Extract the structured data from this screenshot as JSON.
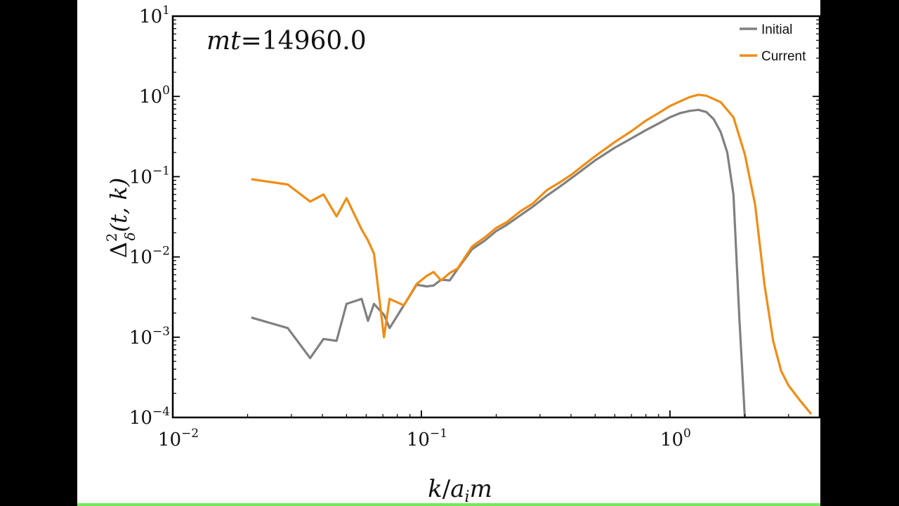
{
  "chart_data": {
    "type": "line",
    "title": "",
    "annotation": "mt=14960.0",
    "annotation_parts": {
      "m": "m",
      "t": "t",
      "value": "=14960.0"
    },
    "xlabel": "k/a_i m",
    "xlabel_parts": {
      "k": "k",
      "slash": "/",
      "a": "a",
      "i": "i",
      "m": "m"
    },
    "ylabel": "Δ_δ^2(t,k)",
    "ylabel_parts": {
      "delta": "Δ",
      "sup": "2",
      "sub": "δ",
      "args": "(t, k)"
    },
    "x_scale": "log",
    "y_scale": "log",
    "xlim": [
      0.01,
      4.0
    ],
    "ylim": [
      0.0001,
      10
    ],
    "x_ticks": [
      {
        "value": 0.01,
        "base": "10",
        "exp": "−2"
      },
      {
        "value": 0.1,
        "base": "10",
        "exp": "−1"
      },
      {
        "value": 1,
        "base": "10",
        "exp": "0"
      }
    ],
    "y_ticks": [
      {
        "value": 10,
        "base": "10",
        "exp": "1"
      },
      {
        "value": 1,
        "base": "10",
        "exp": "0"
      },
      {
        "value": 0.1,
        "base": "10",
        "exp": "−1"
      },
      {
        "value": 0.01,
        "base": "10",
        "exp": "−2"
      },
      {
        "value": 0.001,
        "base": "10",
        "exp": "−3"
      },
      {
        "value": 0.0001,
        "base": "10",
        "exp": "−4"
      }
    ],
    "grid": false,
    "legend_position": "top-right",
    "series": [
      {
        "name": "Initial",
        "color": "#808080",
        "x": [
          0.0207,
          0.029,
          0.0357,
          0.0404,
          0.0456,
          0.05,
          0.0575,
          0.061,
          0.0645,
          0.0707,
          0.0745,
          0.085,
          0.0957,
          0.105,
          0.112,
          0.12,
          0.13,
          0.14,
          0.16,
          0.18,
          0.2,
          0.22,
          0.25,
          0.28,
          0.32,
          0.36,
          0.4,
          0.45,
          0.5,
          0.6,
          0.7,
          0.8,
          0.9,
          1.0,
          1.1,
          1.2,
          1.3,
          1.4,
          1.5,
          1.6,
          1.7,
          1.8,
          1.9,
          2.0
        ],
        "y": [
          0.00176,
          0.0013,
          0.00055,
          0.00095,
          0.0009,
          0.0026,
          0.003,
          0.0016,
          0.0026,
          0.0019,
          0.0013,
          0.0025,
          0.0045,
          0.0043,
          0.0044,
          0.0052,
          0.0051,
          0.0071,
          0.0125,
          0.016,
          0.021,
          0.025,
          0.033,
          0.042,
          0.058,
          0.075,
          0.095,
          0.125,
          0.16,
          0.23,
          0.3,
          0.38,
          0.46,
          0.55,
          0.62,
          0.66,
          0.68,
          0.64,
          0.52,
          0.36,
          0.2,
          0.06,
          0.0018,
          0.0001
        ]
      },
      {
        "name": "Current",
        "color": "#f08c15",
        "x": [
          0.0207,
          0.029,
          0.0357,
          0.0404,
          0.0456,
          0.05,
          0.0575,
          0.061,
          0.0645,
          0.0707,
          0.0745,
          0.085,
          0.0957,
          0.105,
          0.112,
          0.12,
          0.13,
          0.14,
          0.16,
          0.18,
          0.2,
          0.22,
          0.25,
          0.28,
          0.32,
          0.36,
          0.4,
          0.45,
          0.5,
          0.6,
          0.7,
          0.8,
          0.9,
          1.0,
          1.1,
          1.2,
          1.3,
          1.4,
          1.6,
          1.8,
          2.0,
          2.2,
          2.4,
          2.6,
          2.8,
          3.0,
          3.3,
          3.7
        ],
        "y": [
          0.093,
          0.08,
          0.049,
          0.06,
          0.032,
          0.054,
          0.022,
          0.016,
          0.011,
          0.001,
          0.003,
          0.0025,
          0.0046,
          0.0058,
          0.0065,
          0.0051,
          0.0063,
          0.0072,
          0.0135,
          0.0175,
          0.023,
          0.027,
          0.037,
          0.046,
          0.068,
          0.085,
          0.105,
          0.14,
          0.18,
          0.27,
          0.37,
          0.5,
          0.62,
          0.76,
          0.87,
          0.98,
          1.05,
          1.02,
          0.85,
          0.55,
          0.19,
          0.045,
          0.0045,
          0.0009,
          0.00038,
          0.00025,
          0.00017,
          0.00011
        ]
      }
    ]
  }
}
